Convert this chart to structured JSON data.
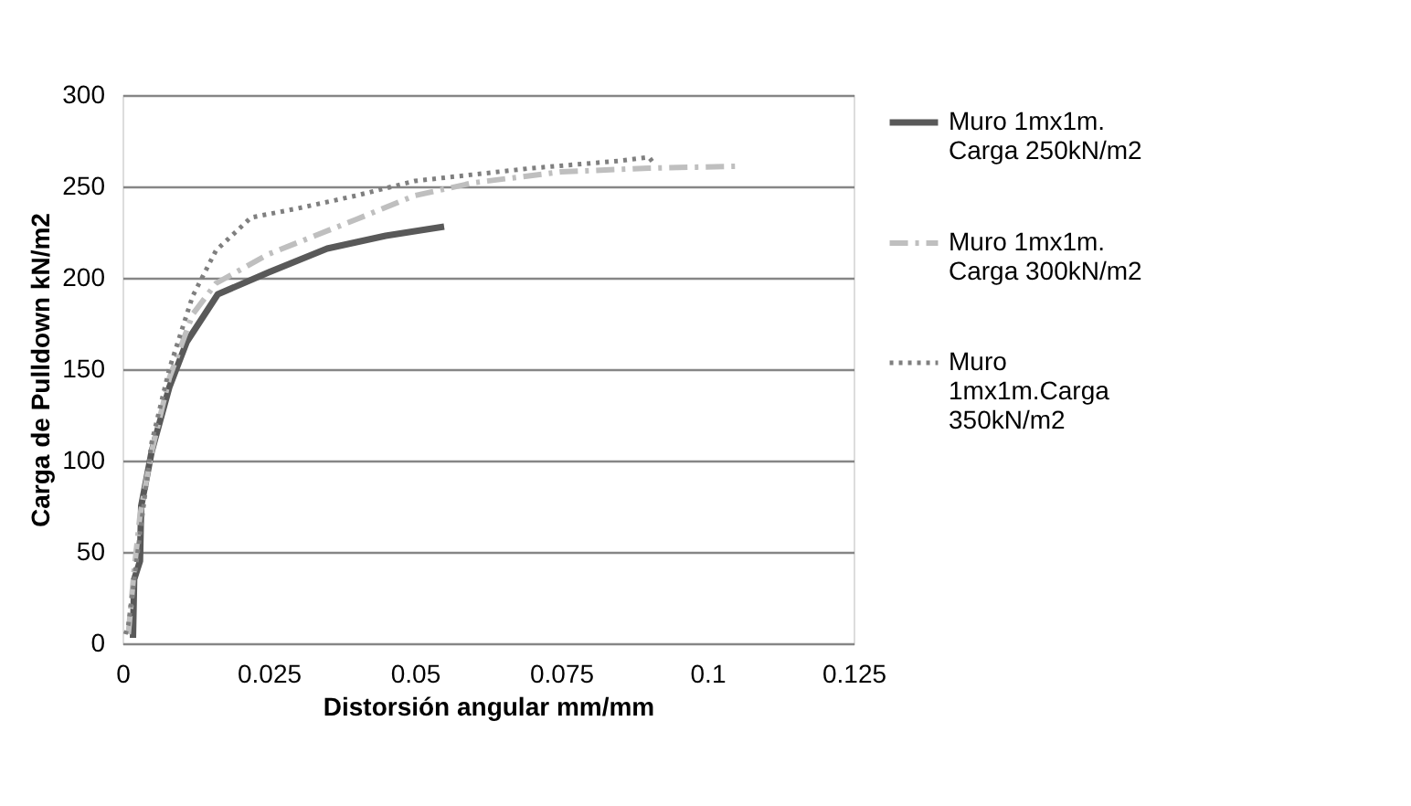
{
  "chart_data": {
    "type": "line",
    "xlabel": "Distorsión angular mm/mm",
    "ylabel": "Carga de Pulldown kN/m2",
    "xlim": [
      0,
      0.125
    ],
    "xticks": [
      0,
      0.025,
      0.05,
      0.075,
      0.1,
      0.125
    ],
    "ylim": [
      0,
      300
    ],
    "yticks": [
      0,
      50,
      100,
      150,
      200,
      250,
      300
    ],
    "grid": "y",
    "legend": "right",
    "marker": "none",
    "series": [
      {
        "name": "Muro 1mx1m. Carga 250kN/m2",
        "color": "#595959",
        "line_style": "solid",
        "x": [
          0.0018,
          0.002,
          0.003,
          0.0032,
          0.005,
          0.008,
          0.011,
          0.0163,
          0.025,
          0.035,
          0.045,
          0.055
        ],
        "values": [
          3,
          35,
          45,
          75,
          105,
          140,
          165,
          191,
          203,
          216,
          223,
          228
        ]
      },
      {
        "name": "Muro 1mx1m. Carga 300kN/m2",
        "color": "#bfbfbf",
        "line_style": "dashed",
        "x": [
          0.001,
          0.002,
          0.003,
          0.005,
          0.008,
          0.012,
          0.016,
          0.025,
          0.04,
          0.05,
          0.06,
          0.075,
          0.09,
          0.105
        ],
        "values": [
          5,
          40,
          70,
          105,
          145,
          180,
          197,
          213,
          232,
          245,
          252,
          258,
          260,
          261
        ]
      },
      {
        "name": "Muro 1mx1m.Carga 350kN/m2",
        "color": "#7f7f7f",
        "line_style": "dotted",
        "x": [
          0.0005,
          0.001,
          0.003,
          0.005,
          0.008,
          0.012,
          0.016,
          0.022,
          0.03,
          0.04,
          0.05,
          0.07,
          0.085,
          0.09,
          0.091
        ],
        "values": [
          5,
          10,
          60,
          110,
          150,
          190,
          215,
          233,
          238,
          245,
          253,
          260,
          264,
          266,
          262
        ]
      }
    ]
  }
}
